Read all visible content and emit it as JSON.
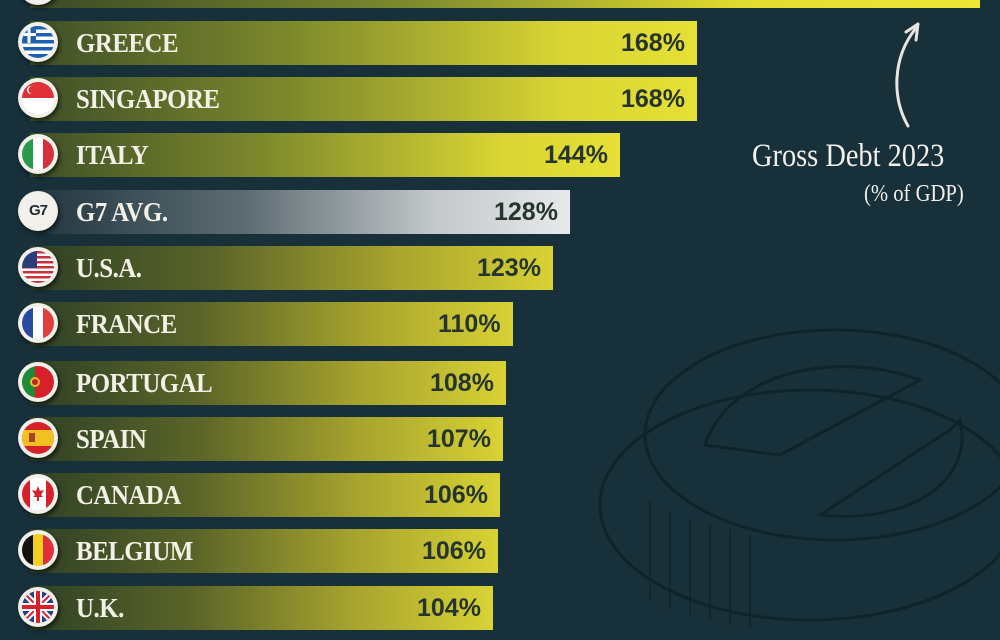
{
  "chart_data": {
    "type": "bar",
    "orientation": "horizontal",
    "title": "Gross Debt 2023",
    "subtitle": "(% of GDP)",
    "xlabel": "",
    "ylabel": "",
    "unit": "% of GDP",
    "grid": false,
    "legend": null,
    "categories": [
      "GREECE",
      "SINGAPORE",
      "ITALY",
      "G7 AVG.",
      "U.S.A.",
      "FRANCE",
      "PORTUGAL",
      "SPAIN",
      "CANADA",
      "BELGIUM",
      "U.K."
    ],
    "values": [
      168,
      168,
      144,
      128,
      123,
      110,
      108,
      107,
      106,
      106,
      104
    ],
    "value_labels": [
      "168%",
      "168%",
      "144%",
      "128%",
      "123%",
      "110%",
      "108%",
      "107%",
      "106%",
      "106%",
      "104%"
    ],
    "annotations": [
      "Top bar cropped (label not visible)",
      "Arrow pointing up to top bar with caption 'Gross Debt 2023 (% of GDP)'"
    ],
    "highlight": "G7 AVG."
  },
  "annotation": {
    "title": "Gross Debt 2023",
    "subtitle": "(% of GDP)"
  },
  "rows": [
    {
      "label": "GREECE",
      "value": "168%",
      "flag": "greece-flag-icon"
    },
    {
      "label": "SINGAPORE",
      "value": "168%",
      "flag": "singapore-flag-icon"
    },
    {
      "label": "ITALY",
      "value": "144%",
      "flag": "italy-flag-icon"
    },
    {
      "label": "G7 AVG.",
      "value": "128%",
      "flag": "g7-badge-icon",
      "badge_text": "G7"
    },
    {
      "label": "U.S.A.",
      "value": "123%",
      "flag": "usa-flag-icon"
    },
    {
      "label": "FRANCE",
      "value": "110%",
      "flag": "france-flag-icon"
    },
    {
      "label": "PORTUGAL",
      "value": "108%",
      "flag": "portugal-flag-icon"
    },
    {
      "label": "SPAIN",
      "value": "107%",
      "flag": "spain-flag-icon"
    },
    {
      "label": "CANADA",
      "value": "106%",
      "flag": "canada-flag-icon"
    },
    {
      "label": "BELGIUM",
      "value": "106%",
      "flag": "belgium-flag-icon"
    },
    {
      "label": "U.K.",
      "value": "104%",
      "flag": "uk-flag-icon"
    }
  ],
  "colors": {
    "background": "#17303a",
    "bar_bright": "#d8d234",
    "bar_dark": "#2f4126",
    "avg_bar_light": "#e8e9ea",
    "label_text": "#f3f0e6",
    "value_text": "#263430"
  }
}
